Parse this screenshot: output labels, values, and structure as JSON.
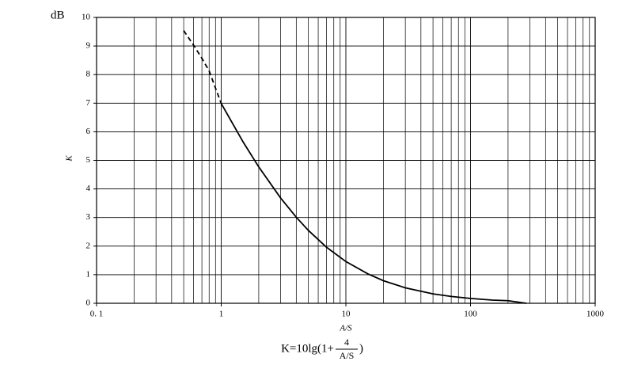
{
  "chart_data": {
    "type": "line",
    "unit_label": "dB",
    "y_label": "K",
    "x_label": "A/S",
    "formula": {
      "prefix": "K=10lg(1+",
      "numerator": "4",
      "denominator": "A/S",
      "suffix": ")"
    },
    "log_x": true,
    "grid": true,
    "xlim": [
      0.1,
      1000
    ],
    "xticks": [
      {
        "value": 0.1,
        "label": "0. 1"
      },
      1,
      10,
      100,
      1000
    ],
    "xminor": [
      0.2,
      0.3,
      0.4,
      0.5,
      0.6,
      0.7,
      0.8,
      0.9,
      2,
      3,
      4,
      5,
      6,
      7,
      8,
      9,
      20,
      30,
      40,
      50,
      60,
      70,
      80,
      90,
      200,
      300,
      400,
      500,
      600,
      700,
      800,
      900
    ],
    "ylim": [
      0,
      10
    ],
    "yticks": [
      0,
      1,
      2,
      3,
      4,
      5,
      6,
      7,
      8,
      9,
      10
    ],
    "series": [
      {
        "style": "dashed",
        "color": "#000000",
        "x": [
          0.5,
          0.6,
          0.7,
          0.8,
          1
        ],
        "values": [
          9.54,
          9.03,
          8.57,
          8.13,
          6.99
        ]
      },
      {
        "style": "solid",
        "color": "#000000",
        "x": [
          1,
          1.5,
          2,
          3,
          4,
          5,
          7,
          10,
          15,
          20,
          30,
          50,
          70,
          100,
          150,
          200,
          280
        ],
        "values": [
          6.99,
          5.64,
          4.77,
          3.68,
          3.01,
          2.55,
          1.96,
          1.46,
          1.03,
          0.79,
          0.54,
          0.33,
          0.24,
          0.17,
          0.11,
          0.09,
          0
        ]
      }
    ]
  }
}
